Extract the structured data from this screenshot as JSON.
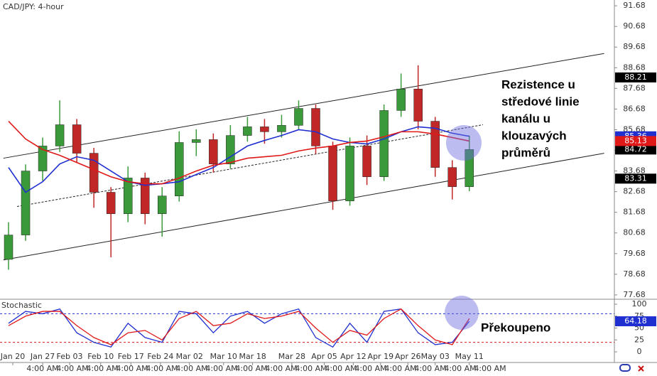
{
  "chart_data": [
    {
      "type": "candlestick",
      "title": "CAD/JPY: 4-hour",
      "xlim": [
        0,
        36
      ],
      "ylim": [
        77.47,
        91.96
      ],
      "xticks": [
        {
          "value": 0.75,
          "label": "Jan 20"
        },
        {
          "value": 2.5,
          "label": "Jan 27"
        },
        {
          "value": 4.08,
          "label": "Feb 03"
        },
        {
          "value": 5.9,
          "label": "Feb 10"
        },
        {
          "value": 7.67,
          "label": "Feb 17"
        },
        {
          "value": 9.4,
          "label": "Feb 24"
        },
        {
          "value": 11.1,
          "label": "Mar 02"
        },
        {
          "value": 13.1,
          "label": "Mar 10"
        },
        {
          "value": 14.8,
          "label": "Mar 18"
        },
        {
          "value": 17.1,
          "label": "Mar 28"
        },
        {
          "value": 19.0,
          "label": "Apr 05"
        },
        {
          "value": 20.7,
          "label": "Apr 12"
        },
        {
          "value": 22.3,
          "label": "Apr 19"
        },
        {
          "value": 23.9,
          "label": "Apr 26"
        },
        {
          "value": 25.5,
          "label": "May 03"
        },
        {
          "value": 27.5,
          "label": "May 11"
        }
      ],
      "time_labels": [
        "4:00 AM",
        "4:00 AM",
        "4:00 AM",
        "4:00 AM",
        "4:00 AM",
        "4:00 AM",
        "4:00 AM",
        "4:00 AM",
        "4:00 AM",
        "4:00 AM",
        "4:00 AM",
        "4:00 AM",
        "4:00 AM",
        "4:00 AM",
        "4:00 AM",
        "4:00 AM"
      ],
      "yticks": [
        91.68,
        90.68,
        89.68,
        88.68,
        87.68,
        86.68,
        85.68,
        84.68,
        83.68,
        82.68,
        81.68,
        80.68,
        79.68,
        78.68,
        77.68
      ],
      "up_color": "#3a9a3a",
      "down_color": "#c02828",
      "open": [
        79.4,
        80.58,
        83.68,
        84.89,
        85.92,
        84.54,
        82.65,
        81.61,
        83.34,
        81.61,
        82.47,
        85.06,
        85.2,
        84.02,
        85.4,
        85.82,
        85.58,
        85.89,
        86.71,
        84.89,
        82.23,
        84.89,
        83.4,
        86.61,
        87.65,
        86.09,
        83.85,
        82.92
      ],
      "high": [
        81.2,
        84.0,
        85.3,
        87.1,
        86.2,
        84.8,
        82.9,
        83.9,
        83.6,
        82.9,
        85.6,
        85.7,
        85.5,
        85.9,
        86.3,
        86.2,
        86.4,
        87.1,
        86.9,
        85.1,
        85.3,
        85.4,
        86.9,
        88.4,
        88.8,
        86.3,
        84.2,
        85.4
      ],
      "low": [
        78.9,
        80.3,
        83.2,
        84.6,
        84.1,
        81.9,
        79.5,
        81.2,
        81.1,
        80.5,
        82.2,
        84.4,
        83.6,
        83.8,
        85.1,
        85.0,
        85.3,
        85.7,
        84.5,
        81.8,
        82.0,
        83.0,
        83.2,
        86.3,
        85.7,
        83.4,
        82.3,
        82.7
      ],
      "close": [
        80.58,
        83.68,
        84.89,
        85.92,
        84.54,
        82.65,
        81.61,
        83.34,
        81.61,
        82.47,
        85.06,
        85.2,
        84.02,
        85.4,
        85.82,
        85.58,
        85.89,
        86.71,
        84.89,
        82.23,
        84.89,
        83.4,
        86.61,
        87.65,
        86.09,
        83.85,
        82.92,
        84.72
      ],
      "overlays": [
        {
          "color": "#2030d0",
          "values": [
            83.85,
            82.65,
            83.16,
            84.02,
            84.37,
            84.2,
            83.68,
            83.16,
            82.99,
            83.06,
            83.16,
            83.51,
            83.85,
            84.37,
            84.89,
            85.16,
            85.4,
            85.68,
            85.58,
            85.23,
            85.06,
            84.99,
            85.23,
            85.58,
            85.82,
            85.75,
            85.51,
            85.36
          ]
        },
        {
          "color": "#e01818",
          "values": [
            86.09,
            85.23,
            84.72,
            84.44,
            84.09,
            83.75,
            83.4,
            83.16,
            83.06,
            83.06,
            83.34,
            83.68,
            83.96,
            84.09,
            84.3,
            84.37,
            84.44,
            84.65,
            84.79,
            84.89,
            85.06,
            85.13,
            85.34,
            85.58,
            85.58,
            85.47,
            85.3,
            85.13
          ]
        }
      ],
      "trendlines": [
        {
          "x": [
            0.2,
            35.4
          ],
          "y": [
            84.3,
            89.37
          ],
          "dashed": false
        },
        {
          "x": [
            0.2,
            35.4
          ],
          "y": [
            79.37,
            84.54
          ],
          "dashed": false
        },
        {
          "x": [
            1.0,
            28.3
          ],
          "y": [
            81.96,
            85.92
          ],
          "dashed": true
        }
      ],
      "price_markers": [
        88.21,
        83.31
      ],
      "annotation": [
        "Rezistence u",
        "středové linie",
        "kanálu u",
        "klouzavých",
        "průměrů"
      ]
    },
    {
      "type": "line",
      "title": "Stochastic",
      "xlim": [
        0,
        36
      ],
      "ylim": [
        -22.4,
        109
      ],
      "yticks": [
        100,
        75,
        50,
        25,
        0
      ],
      "levels": [
        {
          "value": 80,
          "color": "#2030d0"
        },
        {
          "value": 20,
          "color": "#e01818"
        }
      ],
      "series": [
        {
          "color": "#2030d0",
          "values": [
            60,
            85,
            80,
            90,
            40,
            20,
            10,
            60,
            30,
            20,
            85,
            80,
            40,
            75,
            85,
            60,
            80,
            90,
            30,
            10,
            60,
            20,
            85,
            90,
            40,
            15,
            20,
            64.18
          ]
        },
        {
          "color": "#e01818",
          "values": [
            55,
            75,
            85,
            85,
            55,
            30,
            15,
            40,
            45,
            25,
            70,
            85,
            55,
            60,
            80,
            70,
            75,
            85,
            50,
            20,
            45,
            35,
            70,
            90,
            55,
            25,
            15,
            70
          ]
        }
      ],
      "annotation": "Překoupeno"
    }
  ]
}
